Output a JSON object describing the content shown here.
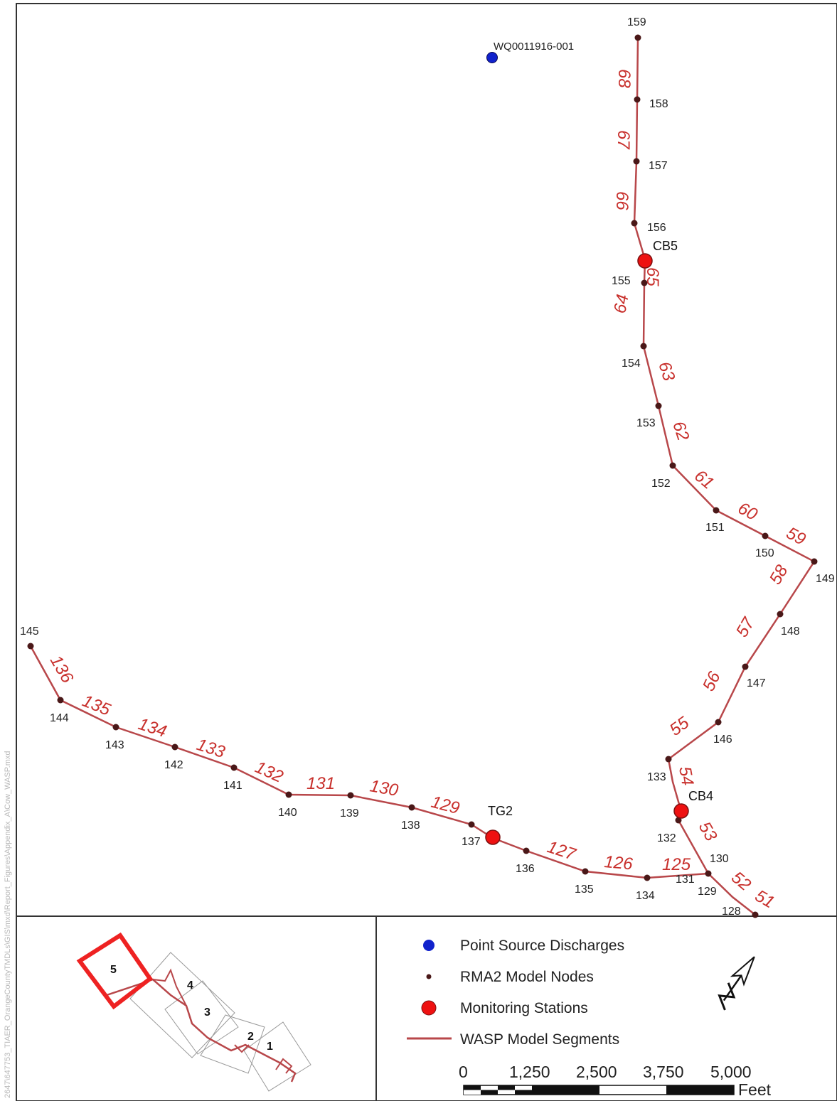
{
  "colors": {
    "segment": "#b8474a",
    "segment_label": "#c8302c",
    "node": "#4a1818",
    "station": "#ee1111",
    "point_source": "#1122cc",
    "inset_highlight": "#ee2222"
  },
  "point_source": {
    "label": "WQ0011916-001"
  },
  "stations": [
    {
      "id": "CB5",
      "label": "CB5"
    },
    {
      "id": "CB4",
      "label": "CB4"
    },
    {
      "id": "TG2",
      "label": "TG2"
    }
  ],
  "node_labels": [
    "159",
    "158",
    "157",
    "156",
    "155",
    "154",
    "153",
    "152",
    "151",
    "150",
    "149",
    "148",
    "147",
    "146",
    "133",
    "132",
    "130",
    "129",
    "128",
    "131",
    "145",
    "144",
    "143",
    "142",
    "141",
    "140",
    "139",
    "138",
    "137",
    "136",
    "135",
    "134"
  ],
  "segment_labels": [
    "68",
    "67",
    "66",
    "65",
    "64",
    "63",
    "62",
    "61",
    "60",
    "59",
    "58",
    "57",
    "56",
    "55",
    "54",
    "53",
    "52",
    "51",
    "136",
    "135",
    "134",
    "133",
    "132",
    "131",
    "130",
    "129",
    "127",
    "126",
    "125"
  ],
  "legend": {
    "items": [
      {
        "icon": "blue-circle-icon",
        "label": "Point Source Discharges"
      },
      {
        "icon": "small-dark-dot-icon",
        "label": "RMA2 Model Nodes"
      },
      {
        "icon": "red-circle-icon",
        "label": "Monitoring Stations"
      },
      {
        "icon": "red-line-icon",
        "label": "WASP Model Segments"
      }
    ],
    "north_arrow_icon": "north-arrow-icon"
  },
  "scale_bar": {
    "ticks": [
      "0",
      "1,250",
      "2,500",
      "3,750",
      "5,000"
    ],
    "unit": "Feet"
  },
  "inset": {
    "box_labels": [
      "5",
      "4",
      "3",
      "2",
      "1"
    ],
    "highlighted": "5"
  },
  "side_text": "2647\\647753_TIAER_OrangeCountyTMDLs\\GIS\\mxd\\Report_Figures\\Appendix_A\\Cow_WASP.mxd"
}
